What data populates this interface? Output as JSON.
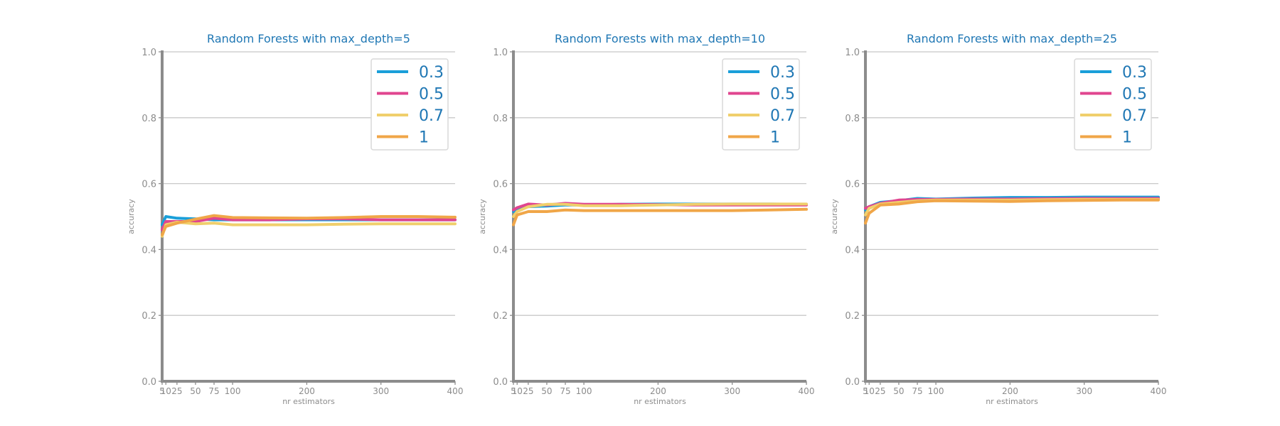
{
  "figure": {
    "background": "#ffffff"
  },
  "style": {
    "title_color": "#1f77b4",
    "tick_color": "#8c8c8c",
    "axis_color": "#8c8c8c",
    "grid_color": "#c8c8c8",
    "legend_text_color": "#1f77b4",
    "legend_border_color": "#d9d9d9"
  },
  "chart_data": [
    {
      "type": "line",
      "title": "Random Forests with max_depth=5",
      "xlabel": "nr estimators",
      "ylabel": "accuracy",
      "xlim": [
        5,
        400
      ],
      "ylim": [
        0.0,
        1.0
      ],
      "grid": "horizontal",
      "legend_position": "top-right",
      "x": [
        5,
        10,
        25,
        50,
        75,
        100,
        150,
        200,
        250,
        300,
        350,
        400
      ],
      "xticks": [
        {
          "value": 5,
          "label": "5"
        },
        {
          "value": 10,
          "label": "10"
        },
        {
          "value": 25,
          "label": "25"
        },
        {
          "value": 50,
          "label": "50"
        },
        {
          "value": 75,
          "label": "75"
        },
        {
          "value": 100,
          "label": "100"
        },
        {
          "value": 200,
          "label": "200"
        },
        {
          "value": 300,
          "label": "300"
        },
        {
          "value": 400,
          "label": "400"
        }
      ],
      "yticks": [
        {
          "value": 0.0,
          "label": "0.0"
        },
        {
          "value": 0.2,
          "label": "0.2"
        },
        {
          "value": 0.4,
          "label": "0.4"
        },
        {
          "value": 0.6,
          "label": "0.6"
        },
        {
          "value": 0.8,
          "label": "0.8"
        },
        {
          "value": 1.0,
          "label": "1.0"
        }
      ],
      "series": [
        {
          "name": "0.3",
          "color": "#1a9fd9",
          "values": [
            0.475,
            0.5,
            0.495,
            0.493,
            0.49,
            0.49,
            0.49,
            0.49,
            0.49,
            0.49,
            0.49,
            0.49
          ]
        },
        {
          "name": "0.5",
          "color": "#e0458f",
          "values": [
            0.46,
            0.485,
            0.485,
            0.485,
            0.495,
            0.49,
            0.49,
            0.493,
            0.493,
            0.49,
            0.49,
            0.49
          ]
        },
        {
          "name": "0.7",
          "color": "#f0cf6c",
          "values": [
            0.44,
            0.475,
            0.483,
            0.478,
            0.48,
            0.475,
            0.475,
            0.475,
            0.477,
            0.478,
            0.478,
            0.478
          ]
        },
        {
          "name": "1",
          "color": "#f0a648",
          "values": [
            0.445,
            0.47,
            0.48,
            0.492,
            0.503,
            0.497,
            0.496,
            0.495,
            0.497,
            0.5,
            0.5,
            0.498
          ]
        }
      ]
    },
    {
      "type": "line",
      "title": "Random Forests with max_depth=10",
      "xlabel": "nr estimators",
      "ylabel": "accuracy",
      "xlim": [
        5,
        400
      ],
      "ylim": [
        0.0,
        1.0
      ],
      "grid": "horizontal",
      "legend_position": "top-right",
      "x": [
        5,
        10,
        25,
        50,
        75,
        100,
        150,
        200,
        250,
        300,
        350,
        400
      ],
      "xticks": [
        {
          "value": 5,
          "label": "5"
        },
        {
          "value": 10,
          "label": "10"
        },
        {
          "value": 25,
          "label": "25"
        },
        {
          "value": 50,
          "label": "50"
        },
        {
          "value": 75,
          "label": "75"
        },
        {
          "value": 100,
          "label": "100"
        },
        {
          "value": 200,
          "label": "200"
        },
        {
          "value": 300,
          "label": "300"
        },
        {
          "value": 400,
          "label": "400"
        }
      ],
      "yticks": [
        {
          "value": 0.0,
          "label": "0.0"
        },
        {
          "value": 0.2,
          "label": "0.2"
        },
        {
          "value": 0.4,
          "label": "0.4"
        },
        {
          "value": 0.6,
          "label": "0.6"
        },
        {
          "value": 0.8,
          "label": "0.8"
        },
        {
          "value": 1.0,
          "label": "1.0"
        }
      ],
      "series": [
        {
          "name": "0.3",
          "color": "#1a9fd9",
          "values": [
            0.515,
            0.52,
            0.53,
            0.532,
            0.535,
            0.535,
            0.537,
            0.538,
            0.538,
            0.538,
            0.538,
            0.537
          ]
        },
        {
          "name": "0.5",
          "color": "#e0458f",
          "values": [
            0.52,
            0.527,
            0.538,
            0.535,
            0.54,
            0.537,
            0.537,
            0.536,
            0.535,
            0.535,
            0.535,
            0.535
          ]
        },
        {
          "name": "0.7",
          "color": "#f0cf6c",
          "values": [
            0.5,
            0.515,
            0.53,
            0.537,
            0.537,
            0.533,
            0.533,
            0.535,
            0.537,
            0.538,
            0.538,
            0.538
          ]
        },
        {
          "name": "1",
          "color": "#f0a648",
          "values": [
            0.475,
            0.505,
            0.515,
            0.515,
            0.52,
            0.518,
            0.518,
            0.518,
            0.518,
            0.518,
            0.52,
            0.522
          ]
        }
      ]
    },
    {
      "type": "line",
      "title": "Random Forests with max_depth=25",
      "xlabel": "nr estimators",
      "ylabel": "accuracy",
      "xlim": [
        5,
        400
      ],
      "ylim": [
        0.0,
        1.0
      ],
      "grid": "horizontal",
      "legend_position": "top-right",
      "x": [
        5,
        10,
        25,
        50,
        75,
        100,
        150,
        200,
        250,
        300,
        350,
        400
      ],
      "xticks": [
        {
          "value": 5,
          "label": "5"
        },
        {
          "value": 10,
          "label": "10"
        },
        {
          "value": 25,
          "label": "25"
        },
        {
          "value": 50,
          "label": "50"
        },
        {
          "value": 75,
          "label": "75"
        },
        {
          "value": 100,
          "label": "100"
        },
        {
          "value": 200,
          "label": "200"
        },
        {
          "value": 300,
          "label": "300"
        },
        {
          "value": 400,
          "label": "400"
        }
      ],
      "yticks": [
        {
          "value": 0.0,
          "label": "0.0"
        },
        {
          "value": 0.2,
          "label": "0.2"
        },
        {
          "value": 0.4,
          "label": "0.4"
        },
        {
          "value": 0.6,
          "label": "0.6"
        },
        {
          "value": 0.8,
          "label": "0.8"
        },
        {
          "value": 1.0,
          "label": "1.0"
        }
      ],
      "series": [
        {
          "name": "0.3",
          "color": "#1a9fd9",
          "values": [
            0.52,
            0.53,
            0.543,
            0.548,
            0.555,
            0.553,
            0.556,
            0.558,
            0.558,
            0.559,
            0.559,
            0.559
          ]
        },
        {
          "name": "0.5",
          "color": "#e0458f",
          "values": [
            0.525,
            0.53,
            0.54,
            0.55,
            0.552,
            0.552,
            0.553,
            0.553,
            0.554,
            0.555,
            0.555,
            0.555
          ]
        },
        {
          "name": "0.7",
          "color": "#f0cf6c",
          "values": [
            0.505,
            0.525,
            0.538,
            0.543,
            0.548,
            0.55,
            0.55,
            0.55,
            0.551,
            0.552,
            0.552,
            0.552
          ]
        },
        {
          "name": "1",
          "color": "#f0a648",
          "values": [
            0.48,
            0.51,
            0.535,
            0.538,
            0.545,
            0.548,
            0.547,
            0.546,
            0.548,
            0.549,
            0.55,
            0.55
          ]
        }
      ]
    }
  ]
}
